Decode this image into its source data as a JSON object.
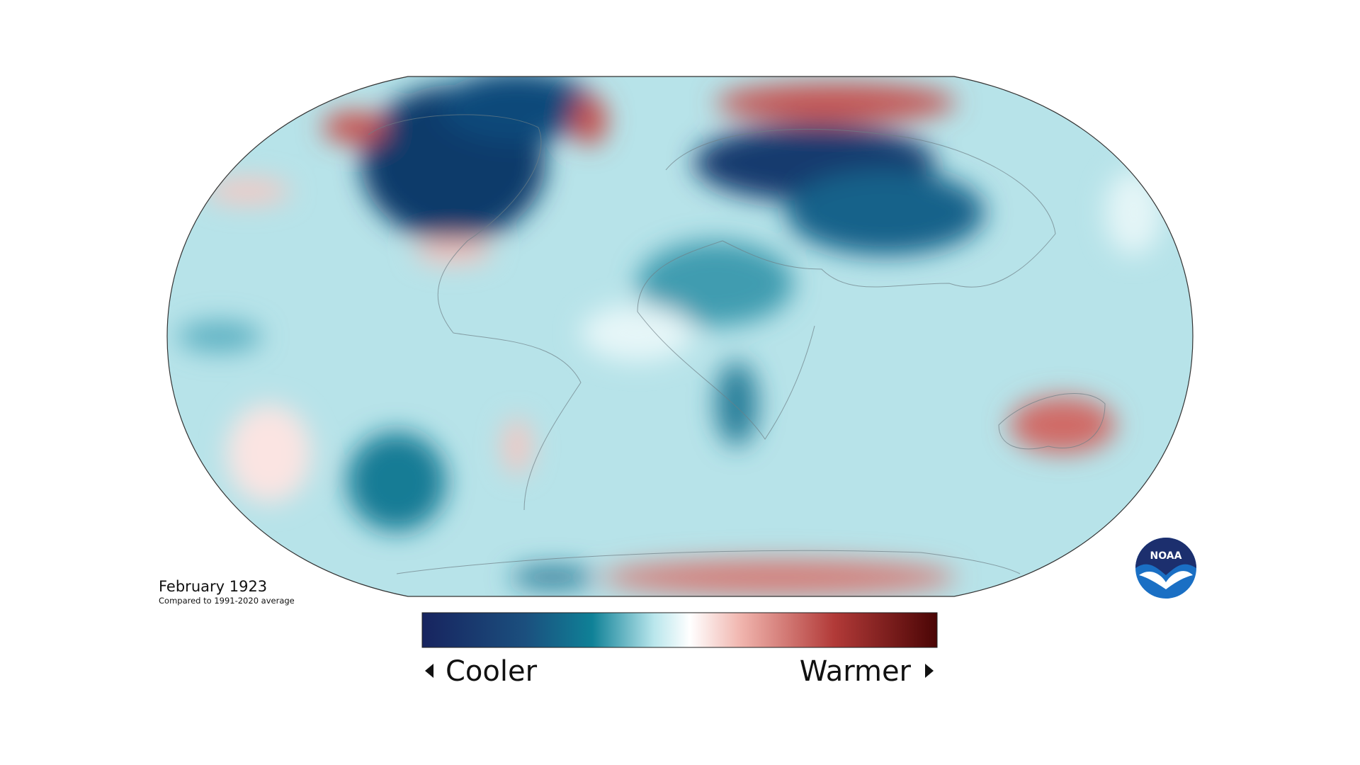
{
  "map": {
    "title": "February 1923",
    "subtitle": "Compared to 1991-2020 average"
  },
  "legend": {
    "low_label": "Cooler",
    "high_label": "Warmer"
  },
  "logo": {
    "text": "NOAA"
  }
}
